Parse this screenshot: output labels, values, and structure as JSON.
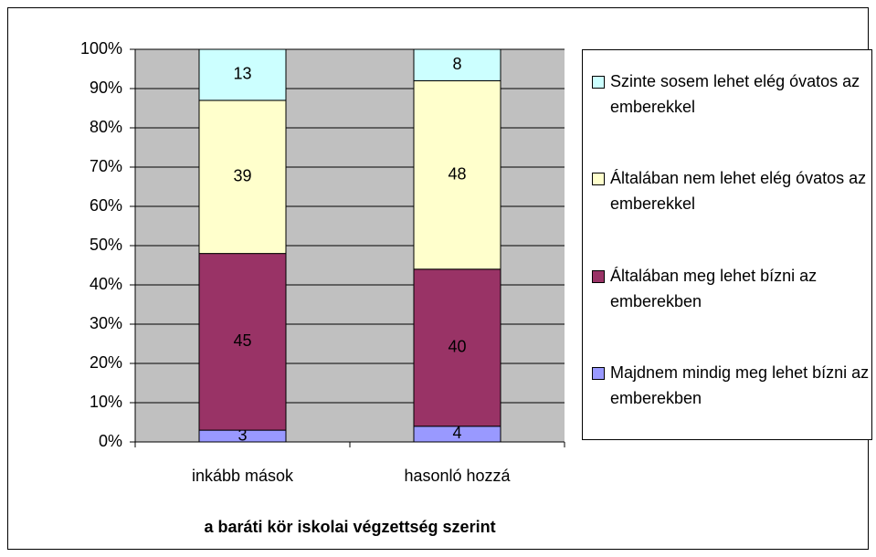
{
  "chart_data": {
    "type": "stacked_bar_100",
    "x_label": "a baráti kör iskolai végzettség szerint",
    "categories": [
      "inkább mások",
      "hasonló hozzá"
    ],
    "series": [
      {
        "name": "Majdnem mindig meg lehet bízni az emberekben",
        "color": "#9999ff",
        "values": [
          3,
          4
        ]
      },
      {
        "name": "Általában meg lehet bízni az emberekben",
        "color": "#993366",
        "values": [
          45,
          40
        ]
      },
      {
        "name": "Általában nem lehet elég óvatos az emberekkel",
        "color": "#ffffcc",
        "values": [
          39,
          48
        ]
      },
      {
        "name": "Szinte sosem lehet elég óvatos az emberekkel",
        "color": "#ccffff",
        "values": [
          13,
          8
        ]
      }
    ],
    "ylim": [
      0,
      100
    ],
    "yticks": [
      {
        "value": 0,
        "label": "0%"
      },
      {
        "value": 10,
        "label": "10%"
      },
      {
        "value": 20,
        "label": "20%"
      },
      {
        "value": 30,
        "label": "30%"
      },
      {
        "value": 40,
        "label": "40%"
      },
      {
        "value": 50,
        "label": "50%"
      },
      {
        "value": 60,
        "label": "60%"
      },
      {
        "value": 70,
        "label": "70%"
      },
      {
        "value": 80,
        "label": "80%"
      },
      {
        "value": 90,
        "label": "90%"
      },
      {
        "value": 100,
        "label": "100%"
      }
    ],
    "grid": true,
    "legend": "right"
  }
}
